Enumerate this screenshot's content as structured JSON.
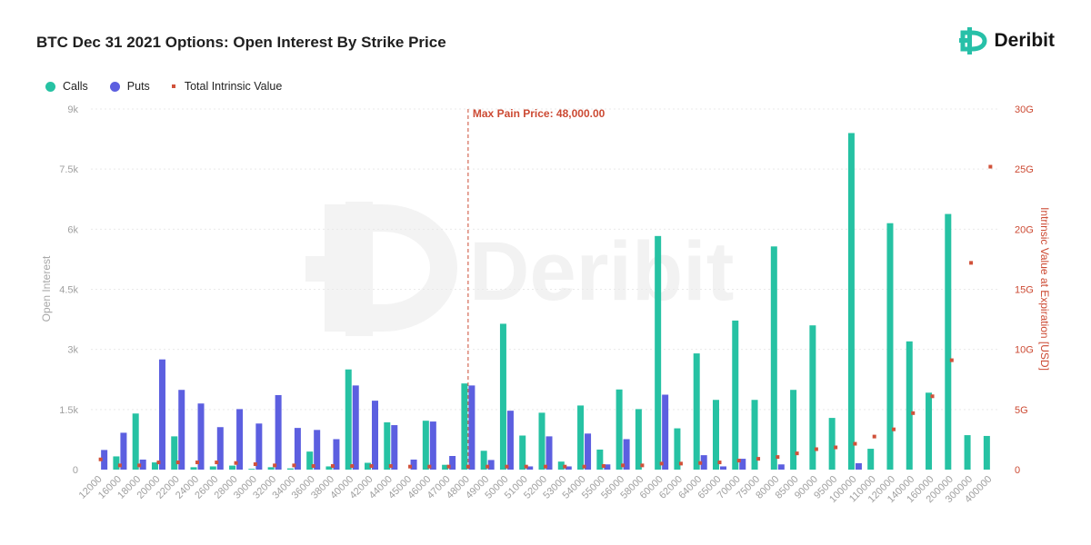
{
  "title": "BTC Dec 31 2021 Options: Open Interest By Strike Price",
  "brand": {
    "name": "Deribit",
    "icon": "deribit-logo-icon",
    "color": "#27c0a8"
  },
  "legend": [
    {
      "label": "Calls",
      "color": "#26c2a3"
    },
    {
      "label": "Puts",
      "color": "#5c5fe0"
    },
    {
      "label": "Total Intrinsic Value",
      "color": "#d1513a"
    }
  ],
  "chart_data": {
    "type": "bar",
    "ylabel": "Open Interest",
    "y2label": "Intrinsic Value at Expiration [USD]",
    "ylim": [
      0,
      9000
    ],
    "y2lim": [
      0,
      30
    ],
    "yticks": [
      "0",
      "1.5k",
      "3k",
      "4.5k",
      "6k",
      "7.5k",
      "9k"
    ],
    "y2ticks": [
      "0",
      "5G",
      "10G",
      "15G",
      "20G",
      "25G",
      "30G"
    ],
    "annotation": {
      "label": "Max Pain Price: 48,000.00",
      "category": "48000"
    },
    "categories": [
      "12000",
      "16000",
      "18000",
      "20000",
      "22000",
      "24000",
      "26000",
      "28000",
      "30000",
      "32000",
      "34000",
      "36000",
      "38000",
      "40000",
      "42000",
      "44000",
      "45000",
      "46000",
      "47000",
      "48000",
      "49000",
      "50000",
      "51000",
      "52000",
      "53000",
      "54000",
      "55000",
      "56000",
      "58000",
      "60000",
      "62000",
      "64000",
      "65000",
      "70000",
      "75000",
      "80000",
      "85000",
      "90000",
      "95000",
      "100000",
      "110000",
      "120000",
      "140000",
      "160000",
      "200000",
      "300000",
      "400000"
    ],
    "series": [
      {
        "name": "Calls",
        "values": [
          0,
          330,
          1400,
          180,
          830,
          60,
          80,
          100,
          20,
          60,
          30,
          450,
          80,
          2500,
          170,
          1180,
          0,
          1220,
          120,
          2150,
          470,
          3640,
          850,
          1420,
          200,
          1600,
          500,
          2000,
          1510,
          5830,
          1030,
          2900,
          1740,
          3720,
          1740,
          5570,
          1990,
          3600,
          1290,
          8400,
          520,
          6150,
          3200,
          1920,
          6380,
          860,
          840
        ]
      },
      {
        "name": "Puts",
        "values": [
          490,
          920,
          250,
          2750,
          1990,
          1650,
          1060,
          1510,
          1150,
          1860,
          1040,
          990,
          760,
          2100,
          1720,
          1110,
          250,
          1200,
          340,
          2100,
          240,
          1470,
          80,
          830,
          80,
          900,
          130,
          760,
          0,
          1870,
          0,
          360,
          80,
          270,
          0,
          130,
          0,
          0,
          0,
          160,
          0,
          0,
          0,
          0,
          0,
          0,
          0
        ]
      },
      {
        "name": "Total Intrinsic Value",
        "values": [
          0.85,
          0.35,
          0.35,
          0.6,
          0.6,
          0.6,
          0.6,
          0.55,
          0.45,
          0.35,
          0.35,
          0.3,
          0.3,
          0.3,
          0.3,
          0.3,
          0.25,
          0.25,
          0.25,
          0.25,
          0.25,
          0.25,
          0.25,
          0.25,
          0.25,
          0.25,
          0.3,
          0.35,
          0.35,
          0.5,
          0.5,
          0.55,
          0.6,
          0.75,
          0.9,
          1.05,
          1.35,
          1.7,
          1.85,
          2.15,
          2.75,
          3.35,
          4.7,
          6.1,
          9.1,
          17.2,
          25.2
        ]
      }
    ]
  }
}
